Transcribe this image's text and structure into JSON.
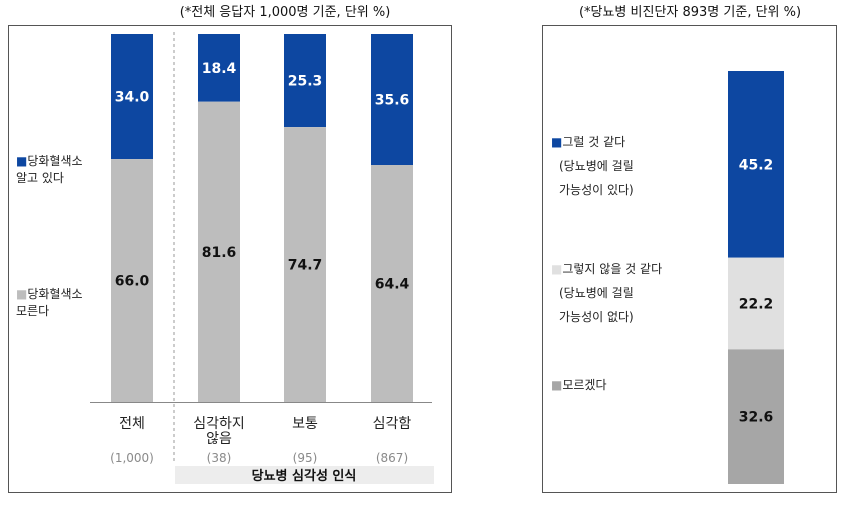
{
  "colors": {
    "blue": "#0d47a1",
    "gray": "#bdbdbd",
    "light_gray": "#e0e0e0",
    "dark_gray": "#a6a6a6"
  },
  "chart_data": [
    {
      "type": "bar",
      "stacked": true,
      "title": "(*전체 응답자 1,000명 기준, 단위 %)",
      "categories": [
        "전체",
        "심각하지 않음",
        "보통",
        "심각함"
      ],
      "category_lines": [
        [
          "전체"
        ],
        [
          "심각하지",
          "않음"
        ],
        [
          "보통"
        ],
        [
          "심각함"
        ]
      ],
      "counts": [
        "(1,000)",
        "(38)",
        "(95)",
        "(867)"
      ],
      "group_label": "당뇨병 심각성 인식",
      "ylim": [
        0,
        100
      ],
      "legend_position": "left",
      "series": [
        {
          "name": "당화혈색소 알고 있다",
          "name_lines": [
            "■당화혈색소",
            "알고 있다"
          ],
          "color": "#0d47a1",
          "values": [
            34.0,
            18.4,
            25.3,
            35.6
          ]
        },
        {
          "name": "당화혈색소 모른다",
          "name_lines": [
            "■당화혈색소",
            "모른다"
          ],
          "color": "#bdbdbd",
          "values": [
            66.0,
            81.6,
            74.7,
            64.4
          ]
        }
      ]
    },
    {
      "type": "bar",
      "stacked": true,
      "title": "(*당뇨병 비진단자 893명 기준, 단위 %)",
      "categories": [
        ""
      ],
      "ylim": [
        0,
        100
      ],
      "legend_position": "left",
      "series": [
        {
          "name": "그럴 것 같다 (당뇨병에 걸릴 가능성이 있다)",
          "name_lines": [
            "■그럴 것 같다",
            "(당뇨병에 걸릴",
            "가능성이 있다)"
          ],
          "color": "#0d47a1",
          "values": [
            45.2
          ]
        },
        {
          "name": "그렇지 않을 것 같다 (당뇨병에 걸릴 가능성이 없다)",
          "name_lines": [
            "■그렇지 않을 것 같다",
            "(당뇨병에 걸릴",
            "가능성이 없다)"
          ],
          "color": "#e0e0e0",
          "values": [
            22.2
          ]
        },
        {
          "name": "모르겠다",
          "name_lines": [
            "■모르겠다"
          ],
          "color": "#a6a6a6",
          "values": [
            32.6
          ]
        }
      ]
    }
  ]
}
